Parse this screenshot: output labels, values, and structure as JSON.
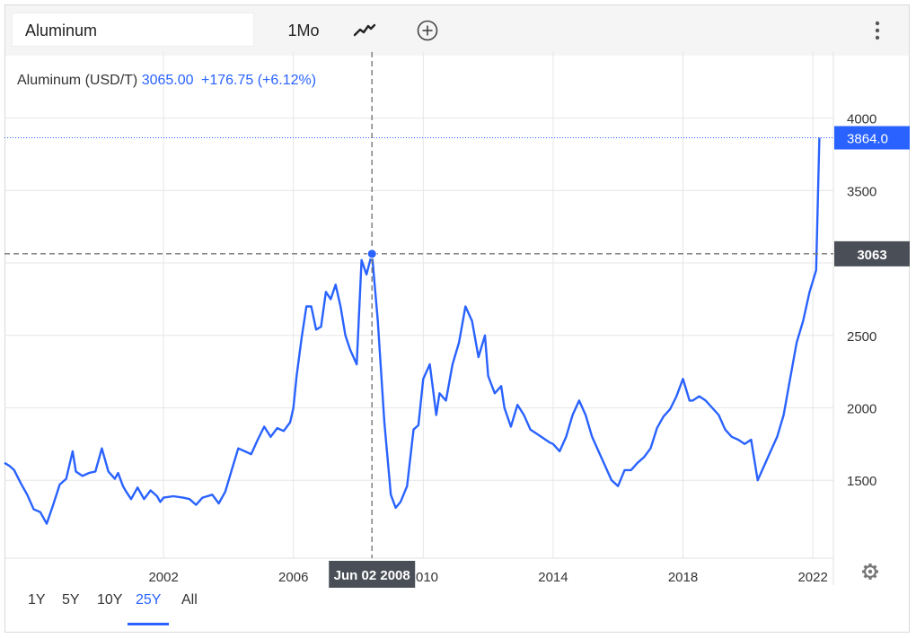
{
  "toolbar": {
    "symbol": "Aluminum",
    "interval": "1Mo",
    "chart_type_icon": "line-chart-icon",
    "compare_icon": "plus-circle-icon",
    "menu_icon": "more-vertical-icon"
  },
  "legend": {
    "name": "Aluminum (USD/T)",
    "value": "3065.00",
    "change": "+176.75 (+6.12%)"
  },
  "crosshair": {
    "date_label": "Jun 02 2008",
    "price_label": "3063",
    "date": 2008.42,
    "price": 3063
  },
  "last_price_label": "3864.0",
  "settings_icon": "gear-icon",
  "ranges": [
    {
      "label": "1Y",
      "active": false
    },
    {
      "label": "5Y",
      "active": false
    },
    {
      "label": "10Y",
      "active": false
    },
    {
      "label": "25Y",
      "active": true
    },
    {
      "label": "All",
      "active": false
    }
  ],
  "colors": {
    "line": "#2962ff",
    "accent": "#2962ff",
    "label_dark": "#4a4f57"
  },
  "chart_data": {
    "type": "line",
    "title": "Aluminum (USD/T)",
    "xlabel": "",
    "ylabel": "",
    "xlim": [
      1997.1,
      2023.0
    ],
    "ylim": [
      950,
      4120
    ],
    "yticks": [
      1500,
      2000,
      2500,
      3000,
      3500,
      4000
    ],
    "ytick_labels": [
      "1500",
      "2000",
      "2500",
      "",
      "3500",
      "4000"
    ],
    "xticks": [
      2002,
      2006,
      2010,
      2014,
      2018,
      2022
    ],
    "xtick_labels": [
      "2002",
      "2006",
      "2010",
      "2014",
      "2018",
      "2022"
    ],
    "grid": true,
    "series": [
      {
        "name": "Aluminum",
        "x": [
          1997.1,
          1997.25,
          1997.4,
          1997.6,
          1997.8,
          1998.0,
          1998.2,
          1998.4,
          1998.6,
          1998.8,
          1999.0,
          1999.2,
          1999.3,
          1999.5,
          1999.7,
          1999.9,
          2000.1,
          2000.3,
          2000.5,
          2000.6,
          2000.75,
          2000.85,
          2001.0,
          2001.2,
          2001.4,
          2001.6,
          2001.8,
          2001.9,
          2002.0,
          2002.3,
          2002.6,
          2002.8,
          2003.0,
          2003.2,
          2003.5,
          2003.7,
          2003.9,
          2004.1,
          2004.3,
          2004.5,
          2004.7,
          2004.9,
          2005.1,
          2005.3,
          2005.5,
          2005.7,
          2005.9,
          2006.0,
          2006.1,
          2006.25,
          2006.4,
          2006.55,
          2006.7,
          2006.85,
          2007.0,
          2007.15,
          2007.3,
          2007.45,
          2007.6,
          2007.75,
          2007.95,
          2008.1,
          2008.25,
          2008.42,
          2008.6,
          2008.8,
          2009.0,
          2009.15,
          2009.3,
          2009.5,
          2009.7,
          2009.85,
          2010.0,
          2010.2,
          2010.4,
          2010.5,
          2010.7,
          2010.9,
          2011.1,
          2011.3,
          2011.5,
          2011.7,
          2011.9,
          2012.0,
          2012.2,
          2012.4,
          2012.5,
          2012.7,
          2012.9,
          2013.1,
          2013.3,
          2013.5,
          2013.7,
          2013.9,
          2014.0,
          2014.2,
          2014.4,
          2014.6,
          2014.8,
          2015.0,
          2015.2,
          2015.4,
          2015.6,
          2015.8,
          2016.0,
          2016.2,
          2016.4,
          2016.6,
          2016.8,
          2017.0,
          2017.2,
          2017.4,
          2017.6,
          2017.8,
          2018.0,
          2018.2,
          2018.3,
          2018.5,
          2018.7,
          2018.9,
          2019.1,
          2019.3,
          2019.5,
          2019.7,
          2019.9,
          2020.1,
          2020.3,
          2020.5,
          2020.7,
          2020.9,
          2021.1,
          2021.3,
          2021.5,
          2021.7,
          2021.9,
          2022.1,
          2022.2
        ],
        "values": [
          1620,
          1600,
          1570,
          1480,
          1400,
          1300,
          1280,
          1200,
          1330,
          1470,
          1510,
          1700,
          1560,
          1530,
          1550,
          1560,
          1720,
          1560,
          1510,
          1550,
          1460,
          1420,
          1370,
          1450,
          1370,
          1430,
          1390,
          1350,
          1380,
          1390,
          1380,
          1370,
          1330,
          1380,
          1400,
          1340,
          1420,
          1570,
          1720,
          1700,
          1680,
          1780,
          1870,
          1800,
          1860,
          1840,
          1900,
          2000,
          2220,
          2480,
          2700,
          2700,
          2540,
          2560,
          2800,
          2750,
          2850,
          2700,
          2500,
          2400,
          2300,
          3020,
          2920,
          3065,
          2600,
          1900,
          1400,
          1310,
          1350,
          1460,
          1850,
          1880,
          2200,
          2300,
          1950,
          2100,
          2050,
          2300,
          2450,
          2700,
          2600,
          2350,
          2500,
          2220,
          2100,
          2150,
          2000,
          1870,
          2020,
          1950,
          1850,
          1820,
          1790,
          1760,
          1750,
          1700,
          1800,
          1950,
          2050,
          1950,
          1800,
          1700,
          1600,
          1500,
          1460,
          1570,
          1570,
          1620,
          1660,
          1720,
          1860,
          1940,
          1990,
          2080,
          2200,
          2050,
          2050,
          2080,
          2050,
          2000,
          1950,
          1850,
          1800,
          1780,
          1750,
          1780,
          1500,
          1600,
          1700,
          1800,
          1950,
          2200,
          2450,
          2600,
          2800,
          2950,
          3864
        ]
      }
    ]
  }
}
